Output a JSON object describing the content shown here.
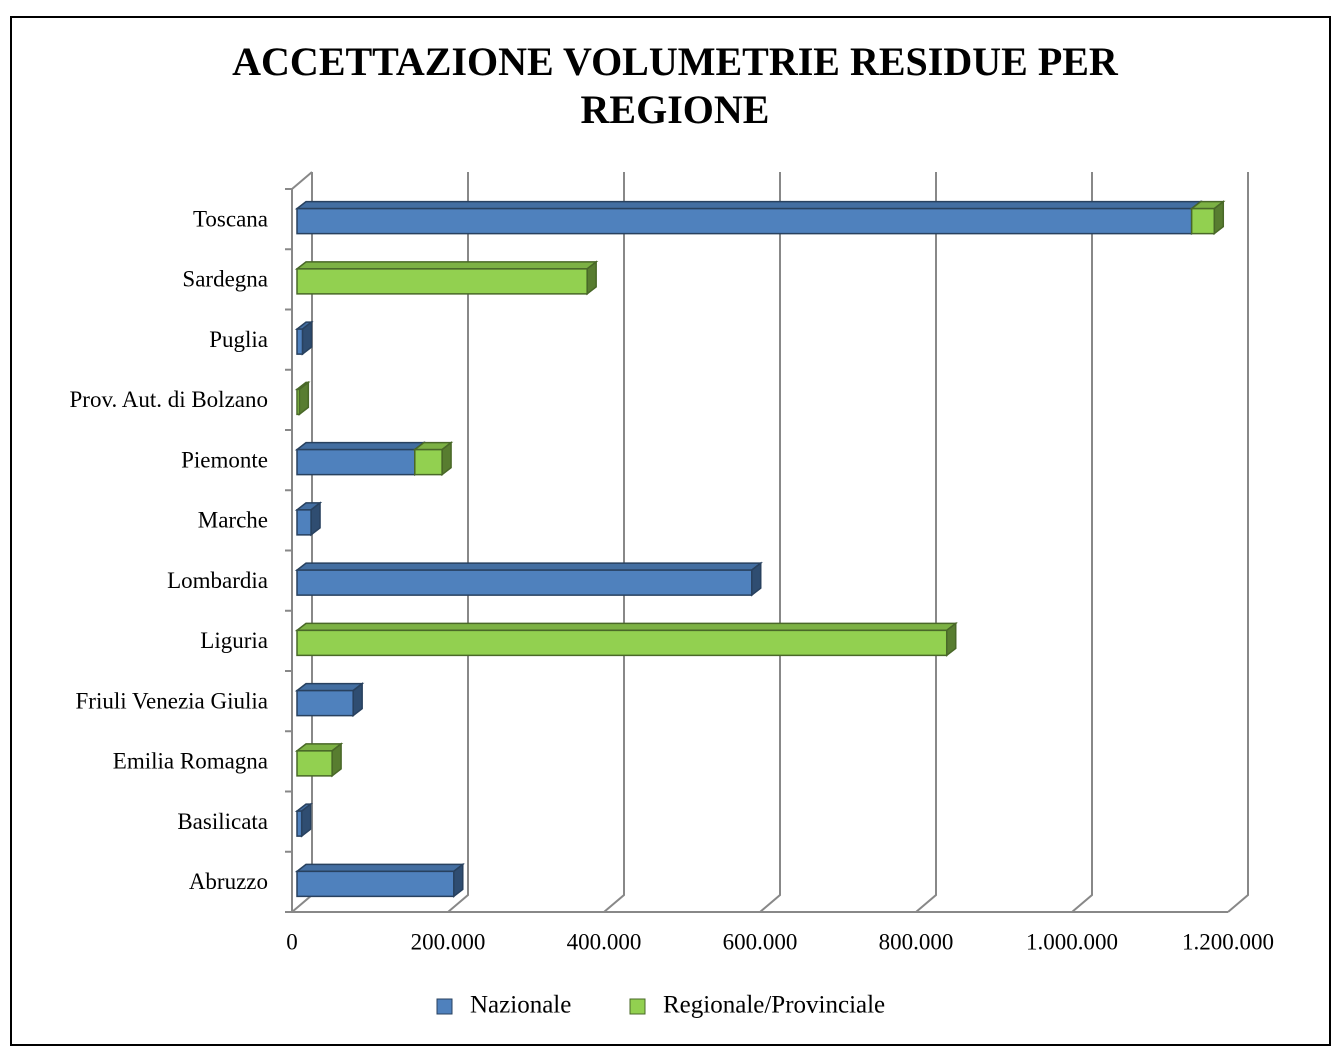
{
  "chart_data": {
    "type": "bar3d_stacked_horizontal",
    "title": "ACCETTAZIONE VOLUMETRIE RESIDUE PER REGIONE",
    "categories": [
      "Abruzzo",
      "Basilicata",
      "Emilia Romagna",
      "Friuli Venezia Giulia",
      "Liguria",
      "Lombardia",
      "Marche",
      "Piemonte",
      "Prov. Aut. di Bolzano",
      "Puglia",
      "Sardegna",
      "Toscana"
    ],
    "series": [
      {
        "name": "Nazionale",
        "color": "#4f81bd",
        "values": [
          201000,
          6000,
          null,
          72000,
          null,
          583000,
          18000,
          151000,
          null,
          7000,
          null,
          1147000
        ]
      },
      {
        "name": "Regionale/Provinciale",
        "color": "#92d050",
        "values": [
          null,
          null,
          45000,
          null,
          833000,
          null,
          null,
          35000,
          3000,
          null,
          372000,
          29000
        ]
      }
    ],
    "xlim": [
      0,
      1200000
    ],
    "xticks": [
      0,
      {
        "value": 200000,
        "label": "200.000"
      },
      {
        "value": 400000,
        "label": "400.000"
      },
      {
        "value": 600000,
        "label": "600.000"
      },
      {
        "value": 800000,
        "label": "800.000"
      },
      {
        "value": 1000000,
        "label": "1.000.000"
      },
      {
        "value": 1200000,
        "label": "1.200.000"
      }
    ],
    "grid": true,
    "legend": "bottom"
  }
}
